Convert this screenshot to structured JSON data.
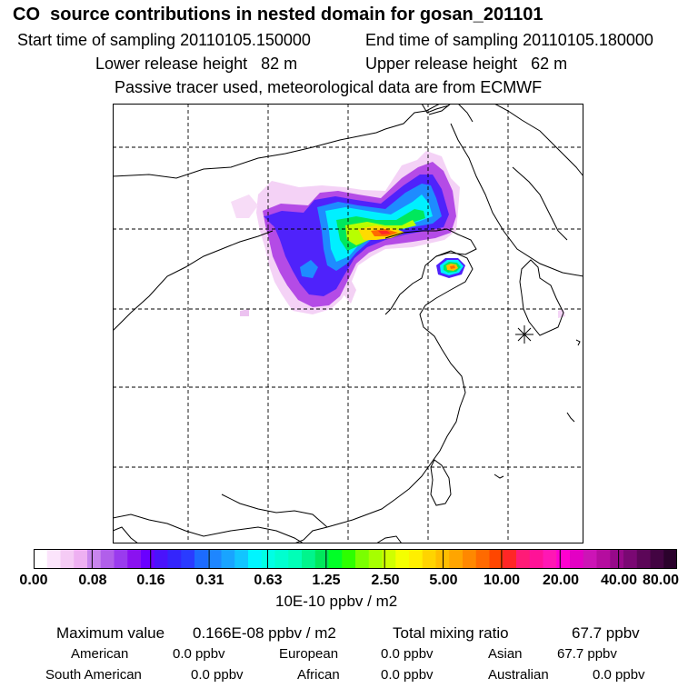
{
  "header": {
    "title": "CO  source contributions in nested domain for gosan_201101",
    "start_label": "Start time of sampling 20110105.150000",
    "end_label": "End time of sampling 20110105.180000",
    "lower_label": "Lower release height   82 m",
    "upper_label": "Upper release height   62 m",
    "note": "Passive tracer used, meteorological data are from ECMWF"
  },
  "colorbar": {
    "ticks": [
      "0.00",
      "0.08",
      "0.16",
      "0.31",
      "0.63",
      "1.25",
      "2.50",
      "5.00",
      "10.00",
      "20.00",
      "40.00",
      "80.00"
    ],
    "units": "10E-10 ppbv / m2",
    "colors": [
      "#ffffff",
      "#fbe4fb",
      "#f5cbf5",
      "#eeb0f2",
      "#c985ee",
      "#b15fea",
      "#9a3bee",
      "#8a12f0",
      "#6a00ff",
      "#4a13fb",
      "#3425fc",
      "#2a3bff",
      "#1c6bff",
      "#1e86ff",
      "#19a4ff",
      "#12c5ff",
      "#00f5ff",
      "#00ffe4",
      "#00ffcf",
      "#00ffb7",
      "#00f58c",
      "#00e85c",
      "#00ff27",
      "#2dff00",
      "#7aff00",
      "#a6ff00",
      "#cfff00",
      "#f4ff00",
      "#ffef00",
      "#ffd400",
      "#ffbd00",
      "#ffa500",
      "#ff8800",
      "#ff6a00",
      "#ff4600",
      "#ff2626",
      "#ff1b77",
      "#ff1297",
      "#ff17b4",
      "#ff00d0",
      "#e300c4",
      "#cc14b6",
      "#b50d9f",
      "#97098a",
      "#7a0873",
      "#5c0658",
      "#430442",
      "#2b022c"
    ]
  },
  "stats": {
    "max_label": "Maximum value",
    "max_value": "0.166E-08 ppbv / m2",
    "total_label": "Total mixing ratio",
    "total_value": "67.7 ppbv"
  },
  "regions": [
    {
      "name": "American",
      "value": "0.0 ppbv"
    },
    {
      "name": "European",
      "value": "0.0 ppbv"
    },
    {
      "name": "Asian",
      "value": "67.7 ppbv"
    },
    {
      "name": "South American",
      "value": "0.0 ppbv"
    },
    {
      "name": "African",
      "value": "0.0 ppbv"
    },
    {
      "name": "Australian",
      "value": "0.0 ppbv"
    }
  ]
}
